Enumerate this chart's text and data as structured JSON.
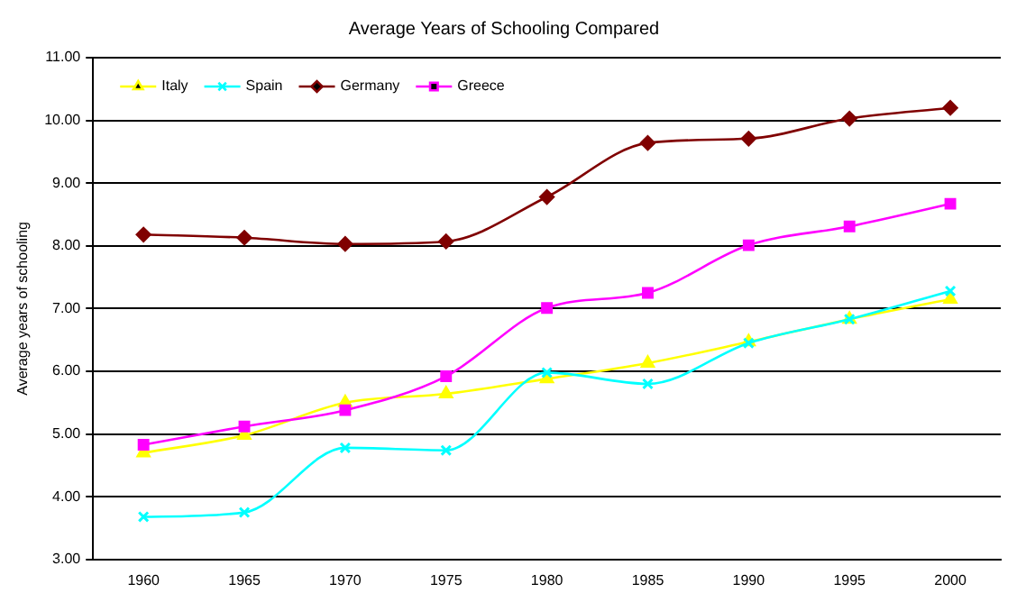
{
  "chart_data": {
    "type": "line",
    "title": "Average Years of Schooling Compared",
    "ylabel": "Average years of schooling",
    "categories": [
      "1960",
      "1965",
      "1970",
      "1975",
      "1980",
      "1985",
      "1990",
      "1995",
      "2000"
    ],
    "series": [
      {
        "name": "Italy",
        "color": "#ffff00",
        "marker": "triangle",
        "values": [
          4.7,
          4.98,
          5.5,
          5.64,
          5.88,
          6.13,
          6.47,
          6.83,
          7.15
        ]
      },
      {
        "name": "Spain",
        "color": "#00ffff",
        "marker": "cross",
        "values": [
          3.68,
          3.75,
          4.78,
          4.74,
          5.98,
          5.8,
          6.45,
          6.83,
          7.28
        ]
      },
      {
        "name": "Germany",
        "color": "#800000",
        "marker": "diamond",
        "values": [
          8.18,
          8.13,
          8.03,
          8.07,
          8.78,
          9.64,
          9.71,
          10.03,
          10.2
        ]
      },
      {
        "name": "Greece",
        "color": "#ff00ff",
        "marker": "square",
        "values": [
          4.83,
          5.12,
          5.38,
          5.92,
          7.01,
          7.25,
          8.01,
          8.31,
          8.67
        ]
      }
    ],
    "ylim": [
      3,
      11
    ],
    "yticks": [
      {
        "value": 3,
        "label": "3.00"
      },
      {
        "value": 4,
        "label": "4.00"
      },
      {
        "value": 5,
        "label": "5.00"
      },
      {
        "value": 6,
        "label": "6.00"
      },
      {
        "value": 7,
        "label": "7.00"
      },
      {
        "value": 8,
        "label": "8.00"
      },
      {
        "value": 9,
        "label": "9.00"
      },
      {
        "value": 10,
        "label": "10.00"
      },
      {
        "value": 11,
        "label": "11.00"
      }
    ],
    "grid": "y",
    "legend": "top left"
  }
}
